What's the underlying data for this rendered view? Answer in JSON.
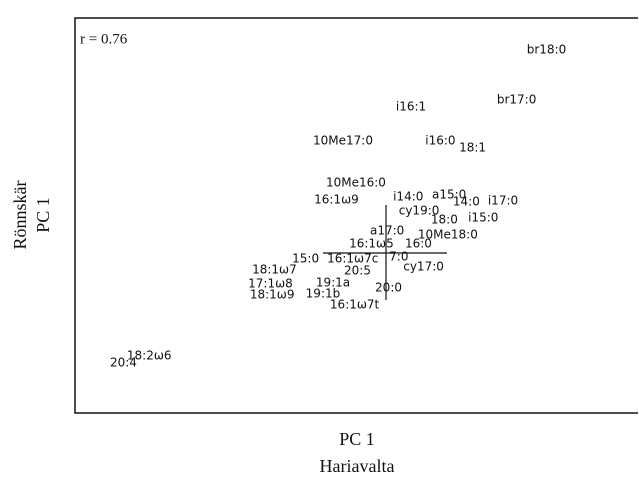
{
  "chart_data": {
    "type": "scatter",
    "annotation": "r = 0.76",
    "xlabel": [
      "PC 1",
      "Hariavalta"
    ],
    "ylabel": [
      "Rönnskär",
      "PC 1"
    ],
    "xlim": [
      0,
      100
    ],
    "ylim": [
      0,
      100
    ],
    "points": [
      {
        "label": "br18:0",
        "x": 80.1,
        "y": 91.9
      },
      {
        "label": "i16:1",
        "x": 56.9,
        "y": 77.5
      },
      {
        "label": "br17:0",
        "x": 74.8,
        "y": 79.2
      },
      {
        "label": "10Me17:0",
        "x": 42.2,
        "y": 68.9
      },
      {
        "label": "i16:0",
        "x": 62.1,
        "y": 68.9
      },
      {
        "label": "18:1",
        "x": 68.1,
        "y": 67.1
      },
      {
        "label": "10Me16:0",
        "x": 44.5,
        "y": 58.2
      },
      {
        "label": "16:1ω9",
        "x": 42.4,
        "y": 53.9
      },
      {
        "label": "i14:0",
        "x": 56.4,
        "y": 54.7
      },
      {
        "label": "a15:0",
        "x": 63.3,
        "y": 55.2
      },
      {
        "label": "cy19:0",
        "x": 57.4,
        "y": 51.1
      },
      {
        "label": "14:0",
        "x": 67.0,
        "y": 53.4
      },
      {
        "label": "i17:0",
        "x": 73.2,
        "y": 53.7
      },
      {
        "label": "18:0",
        "x": 63.1,
        "y": 48.9
      },
      {
        "label": "i15:0",
        "x": 69.7,
        "y": 49.4
      },
      {
        "label": "a17:0",
        "x": 52.3,
        "y": 46.1
      },
      {
        "label": "10Me18:0",
        "x": 60.8,
        "y": 45.1
      },
      {
        "label": "16:1ω5",
        "x": 48.6,
        "y": 42.8
      },
      {
        "label": "16:0",
        "x": 58.5,
        "y": 42.8
      },
      {
        "label": "15:0",
        "x": 38.5,
        "y": 39.0
      },
      {
        "label": "16:1ω7c",
        "x": 44.7,
        "y": 39.0
      },
      {
        "label": "7:0",
        "x": 55.7,
        "y": 39.5
      },
      {
        "label": "20:5",
        "x": 47.7,
        "y": 35.9
      },
      {
        "label": "cy17:0",
        "x": 58.2,
        "y": 37.0
      },
      {
        "label": "18:1ω7",
        "x": 31.4,
        "y": 36.2
      },
      {
        "label": "19:1a",
        "x": 42.7,
        "y": 32.9
      },
      {
        "label": "17:1ω8",
        "x": 30.7,
        "y": 32.7
      },
      {
        "label": "20:0",
        "x": 53.2,
        "y": 31.6
      },
      {
        "label": "18:1ω9",
        "x": 31.0,
        "y": 29.9
      },
      {
        "label": "19:1b",
        "x": 40.9,
        "y": 30.1
      },
      {
        "label": "16:1ω7t",
        "x": 45.2,
        "y": 27.3
      },
      {
        "label": "20:4",
        "x": 6.2,
        "y": 12.7
      },
      {
        "label": "18:2ω6",
        "x": 9.2,
        "y": 14.4
      }
    ]
  }
}
